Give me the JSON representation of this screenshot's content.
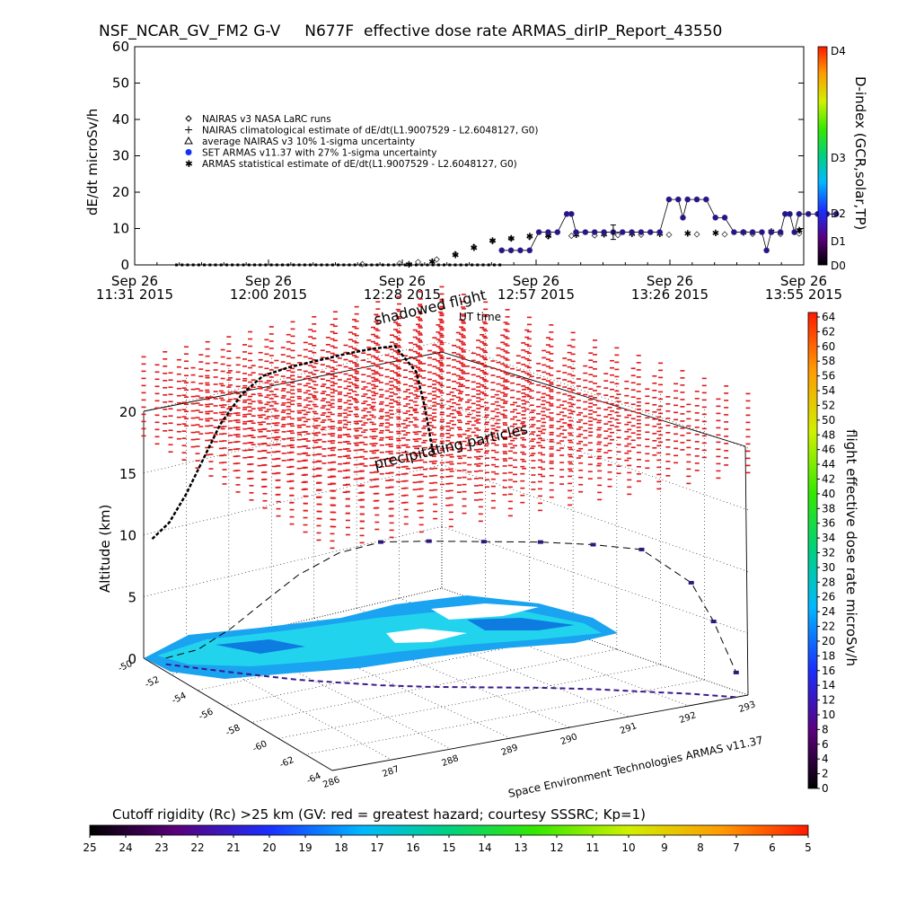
{
  "figure": {
    "title": "NSF_NCAR_GV_FM2 G-V     N677F  effective dose rate ARMAS_dirIP_Report_43550",
    "bottom_caption": "Cutoff rigidity (Rc) >25 km (GV: red = greatest hazard; courtesy SSSRC; Kp=1)",
    "credit": "Space Environment Technologies ARMAS v11.37"
  },
  "chart_data": [
    {
      "type": "scatter",
      "ylabel": "dE/dt microSv/h",
      "ylim": [
        0,
        60
      ],
      "y_ticks": [
        "0",
        "10",
        "20",
        "30",
        "40",
        "50",
        "60"
      ],
      "x_ticks": [
        {
          "date": "Sep 26",
          "time": "11:31 2015"
        },
        {
          "date": "Sep 26",
          "time": "12:00 2015"
        },
        {
          "date": "Sep 26",
          "time": "12:28 2015"
        },
        {
          "date": "Sep 26",
          "time": "12:57 2015"
        },
        {
          "date": "Sep 26",
          "time": "13:26 2015"
        },
        {
          "date": "Sep 26",
          "time": "13:55 2015"
        }
      ],
      "x_minutes": {
        "start": 691,
        "end": 835
      },
      "legend": [
        {
          "symbol": "diamond",
          "label": "NAIRAS v3 NASA LaRC runs"
        },
        {
          "symbol": "plus",
          "label": "NAIRAS climatological estimate of dE/dt(L1.9007529 - L2.6048127, G0)"
        },
        {
          "symbol": "triangle",
          "label": "average NAIRAS v3 10% 1-sigma uncertainty"
        },
        {
          "symbol": "filled-circle-blue",
          "label": "SET ARMAS v11.37 with 27% 1-sigma uncertainty"
        },
        {
          "symbol": "asterisk",
          "label": "ARMAS statistical estimate of dE/dt(L1.9007529 - L2.6048127, G0)"
        }
      ],
      "series": [
        {
          "name": "NAIRAS v3 NASA LaRC runs",
          "points": [
            [
              740,
              0.2
            ],
            [
              748,
              0.4
            ],
            [
              752,
              0.8
            ],
            [
              756,
              1.5
            ],
            [
              760,
              3
            ],
            [
              764,
              5
            ],
            [
              768,
              6.5
            ],
            [
              772,
              7.2
            ],
            [
              776,
              7.6
            ],
            [
              780,
              7.8
            ],
            [
              785,
              8
            ],
            [
              790,
              8.1
            ],
            [
              795,
              8.2
            ],
            [
              800,
              8.3
            ],
            [
              806,
              8.3
            ],
            [
              812,
              8.4
            ],
            [
              818,
              8.4
            ],
            [
              824,
              8.5
            ],
            [
              830,
              8.5
            ],
            [
              834,
              8.6
            ]
          ]
        },
        {
          "name": "ARMAS statistical estimate of dE/dt(L1.9007529 - L2.6048127, G0)",
          "points": [
            [
              750,
              0.3
            ],
            [
              755,
              1
            ],
            [
              760,
              2.8
            ],
            [
              764,
              4.8
            ],
            [
              768,
              6.8
            ],
            [
              772,
              7.4
            ],
            [
              776,
              8
            ],
            [
              780,
              8.2
            ],
            [
              786,
              8.4
            ],
            [
              792,
              8.5
            ],
            [
              798,
              8.6
            ],
            [
              804,
              8.7
            ],
            [
              810,
              8.8
            ],
            [
              816,
              8.9
            ],
            [
              822,
              9
            ],
            [
              828,
              9.2
            ],
            [
              834,
              9.6
            ]
          ]
        },
        {
          "name": "SET ARMAS v11.37 with 27% 1-sigma uncertainty",
          "points": [
            [
              770,
              4
            ],
            [
              772,
              4
            ],
            [
              774,
              4
            ],
            [
              776,
              4
            ],
            [
              778,
              9
            ],
            [
              780,
              9
            ],
            [
              782,
              9
            ],
            [
              784,
              14
            ],
            [
              785,
              14
            ],
            [
              786,
              9
            ],
            [
              788,
              9
            ],
            [
              790,
              9
            ],
            [
              792,
              9
            ],
            [
              794,
              9
            ],
            [
              796,
              9
            ],
            [
              798,
              9
            ],
            [
              800,
              9
            ],
            [
              802,
              9
            ],
            [
              804,
              9
            ],
            [
              806,
              18
            ],
            [
              808,
              18
            ],
            [
              809,
              13
            ],
            [
              810,
              18
            ],
            [
              812,
              18
            ],
            [
              814,
              18
            ],
            [
              816,
              13
            ],
            [
              818,
              13
            ],
            [
              820,
              9
            ],
            [
              822,
              9
            ],
            [
              824,
              9
            ],
            [
              826,
              9
            ],
            [
              827,
              4
            ],
            [
              828,
              9
            ],
            [
              830,
              9
            ],
            [
              831,
              14
            ],
            [
              832,
              14
            ],
            [
              833,
              9
            ],
            [
              834,
              14
            ],
            [
              836,
              14
            ],
            [
              838,
              14
            ],
            [
              840,
              14
            ],
            [
              842,
              14
            ]
          ]
        }
      ],
      "colorbar": {
        "label": "D-index (GCR,solar,TP)",
        "ticks": [
          "D4",
          "D3",
          "D2",
          "D1",
          "D0"
        ]
      }
    },
    {
      "type": "scatter",
      "subtype": "3d-flight-track",
      "zlabel": "Altitude (km)",
      "z_ticks": [
        "0",
        "5",
        "10",
        "15",
        "20"
      ],
      "zlim": [
        0,
        22
      ],
      "lat_ticks": [
        "-50",
        "-52",
        "-54",
        "-56",
        "-58",
        "-60",
        "-62",
        "-64"
      ],
      "lon_ticks": [
        "286",
        "287",
        "288",
        "289",
        "290",
        "291",
        "292",
        "293"
      ],
      "annotations": [
        "shadowed flight",
        "UT time",
        "precipitating particles"
      ],
      "track": [
        [
          -51,
          286.2,
          0.5
        ],
        [
          -52,
          286.6,
          1.5
        ],
        [
          -53,
          287.0,
          3.5
        ],
        [
          -54,
          287.4,
          6
        ],
        [
          -55,
          287.8,
          8.5
        ],
        [
          -56,
          288.3,
          10.5
        ],
        [
          -57,
          288.8,
          11.6
        ],
        [
          -58,
          289.4,
          11.8
        ],
        [
          -59,
          290.1,
          11.8
        ],
        [
          -60,
          290.8,
          11.8
        ],
        [
          -61,
          291.4,
          11.7
        ],
        [
          -62,
          291.9,
          11.5
        ],
        [
          -63,
          292.4,
          9
        ],
        [
          -63.5,
          292.6,
          6
        ],
        [
          -64,
          292.8,
          2
        ]
      ],
      "colorbar": {
        "label": "flight effective dose rate microSv/h",
        "ticks": [
          "0",
          "2",
          "4",
          "6",
          "8",
          "10",
          "12",
          "14",
          "16",
          "18",
          "20",
          "22",
          "24",
          "26",
          "28",
          "30",
          "32",
          "34",
          "36",
          "38",
          "40",
          "42",
          "44",
          "46",
          "48",
          "50",
          "52",
          "54",
          "56",
          "58",
          "60",
          "62",
          "64"
        ]
      }
    },
    {
      "type": "heatmap",
      "title": "Cutoff rigidity (Rc) >25 km (GV: red = greatest hazard; courtesy SSSRC; Kp=1)",
      "colorbar_ticks": [
        "25",
        "24",
        "23",
        "22",
        "21",
        "20",
        "19",
        "18",
        "17",
        "16",
        "15",
        "14",
        "13",
        "12",
        "11",
        "10",
        "9",
        "8",
        "7",
        "6",
        "5"
      ]
    }
  ]
}
